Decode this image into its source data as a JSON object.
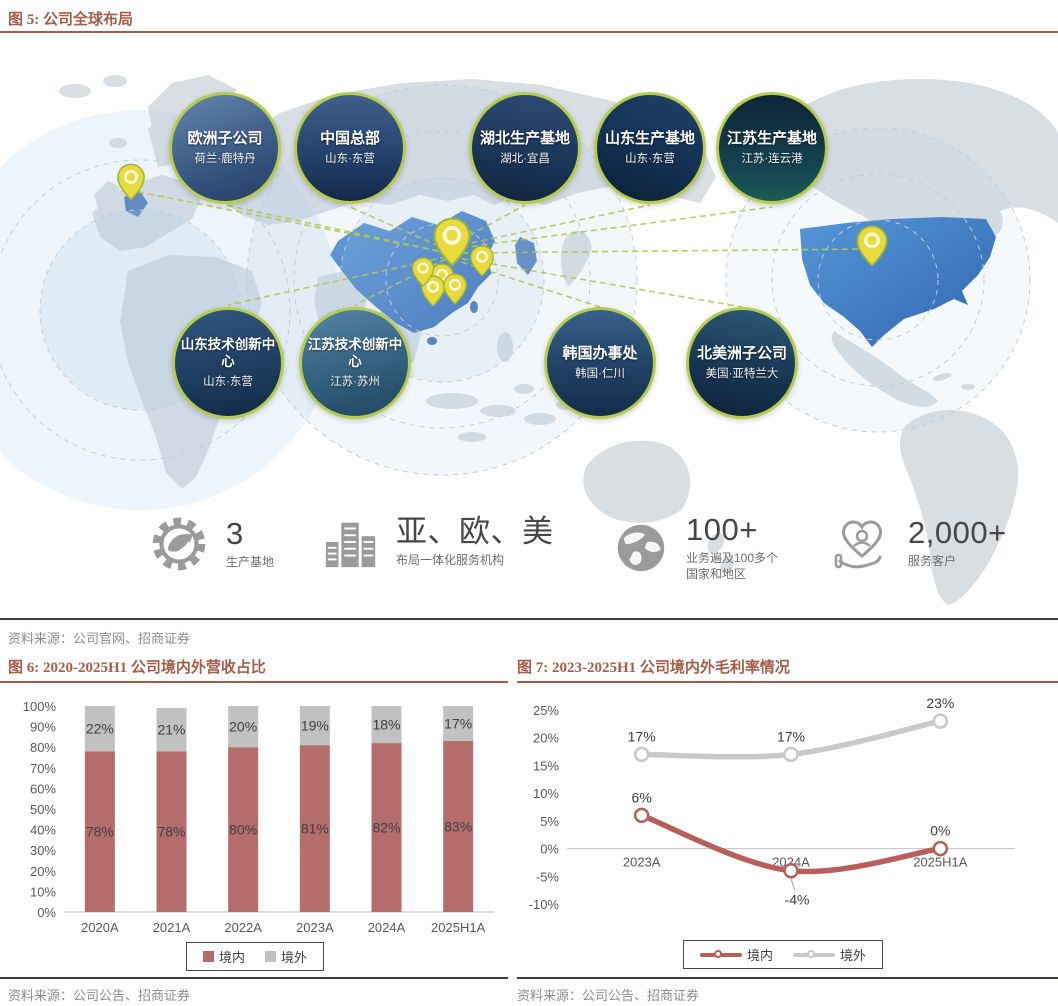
{
  "figure5": {
    "title": "图 5: 公司全球布局",
    "source": "资料来源：公司官网、招商证券",
    "badges": [
      {
        "title": "欧洲子公司",
        "subtitle": "荷兰·鹿特丹"
      },
      {
        "title": "中国总部",
        "subtitle": "山东·东营"
      },
      {
        "title": "湖北生产基地",
        "subtitle": "湖北·宜昌"
      },
      {
        "title": "山东生产基地",
        "subtitle": "山东·东营"
      },
      {
        "title": "江苏生产基地",
        "subtitle": "江苏·连云港"
      },
      {
        "title": "山东技术创新中心",
        "subtitle": "山东·东营"
      },
      {
        "title": "江苏技术创新中心",
        "subtitle": "江苏·苏州"
      },
      {
        "title": "韩国办事处",
        "subtitle": "韩国·仁川"
      },
      {
        "title": "北美洲子公司",
        "subtitle": "美国·亚特兰大"
      }
    ],
    "stats": [
      {
        "icon": "gear-leaf-icon",
        "value": "3",
        "label": "生产基地"
      },
      {
        "icon": "buildings-icon",
        "value": "亚、欧、美",
        "label": "布局一体化服务机构"
      },
      {
        "icon": "globe-icon",
        "value": "100+",
        "label": "业务遍及100多个",
        "label2": "国家和地区"
      },
      {
        "icon": "heart-hand-icon",
        "value": "2,000+",
        "label": "服务客户"
      }
    ]
  },
  "figure6": {
    "title": "图 6: 2020-2025H1 公司境内外营收占比",
    "source": "资料来源：公司公告、招商证券"
  },
  "figure7": {
    "title": "图 7: 2023-2025H1 公司境内外毛利率情况",
    "source": "资料来源：公司公告、招商证券"
  },
  "chart_data": [
    {
      "id": "fig6",
      "type": "bar",
      "stacked": true,
      "title": "图 6: 2020-2025H1 公司境内外营收占比",
      "categories": [
        "2020A",
        "2021A",
        "2022A",
        "2023A",
        "2024A",
        "2025H1A"
      ],
      "series": [
        {
          "name": "境内",
          "color": "#b56c6c",
          "values": [
            78,
            78,
            80,
            81,
            82,
            83
          ]
        },
        {
          "name": "境外",
          "color": "#c1c1c1",
          "values": [
            22,
            21,
            20,
            19,
            18,
            17
          ]
        }
      ],
      "xlabel": "",
      "ylabel": "",
      "unit": "%",
      "ylim": [
        0,
        100
      ],
      "ytick_step": 10,
      "grid": false,
      "legend_position": "bottom"
    },
    {
      "id": "fig7",
      "type": "line",
      "title": "图 7: 2023-2025H1 公司境内外毛利率情况",
      "categories": [
        "2023A",
        "2024A",
        "2025H1A"
      ],
      "series": [
        {
          "name": "境内",
          "color": "#b95f5a",
          "values": [
            6,
            -4,
            0
          ]
        },
        {
          "name": "境外",
          "color": "#c9c9c9",
          "values": [
            17,
            17,
            23
          ]
        }
      ],
      "xlabel": "",
      "ylabel": "",
      "unit": "%",
      "ylim": [
        -10,
        25
      ],
      "ytick_step": 5,
      "grid": false,
      "legend_position": "bottom"
    }
  ],
  "colors": {
    "accent_brick": "#a65c49",
    "pin_yellow": "#e9db3b",
    "link_green": "#b3c84f",
    "map_land": "#d9dee3",
    "map_highlight_dark": "#2a61b4",
    "map_highlight_light": "#5596d8"
  }
}
